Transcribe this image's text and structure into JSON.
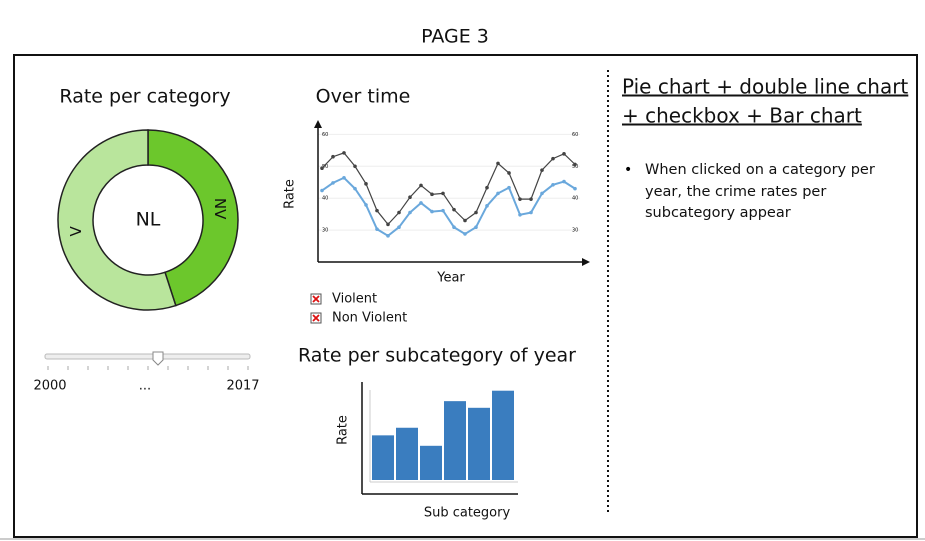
{
  "header": {
    "title": "PAGE 3"
  },
  "pie": {
    "title": "Rate per category",
    "center_label": "NL",
    "categories": [
      "NV",
      "V"
    ],
    "values": [
      45,
      55
    ],
    "colors": [
      "#6cc72c",
      "#b9e59c"
    ]
  },
  "slider": {
    "labels": [
      "2000",
      "...",
      "2017"
    ]
  },
  "line_chart": {
    "type": "line",
    "title": "Over time",
    "x_label": "Year",
    "y_label": "Rate",
    "ylim": [
      20,
      62
    ],
    "yticks": [
      30,
      40,
      50,
      60
    ],
    "grid": true,
    "series": [
      {
        "name": "Violent",
        "color": "#444444",
        "values": [
          49.4,
          53.0,
          54.2,
          50.0,
          44.5,
          36.1,
          31.8,
          35.5,
          40.3,
          44.0,
          41.2,
          41.5,
          36.4,
          33.0,
          35.5,
          43.3,
          50.9,
          47.9,
          39.7,
          39.7,
          48.8,
          52.4,
          53.9,
          50.6
        ]
      },
      {
        "name": "Non Violent",
        "color": "#6aa8dc",
        "values": [
          42.4,
          44.8,
          46.4,
          43.0,
          37.9,
          30.3,
          28.2,
          30.9,
          35.5,
          38.5,
          35.8,
          36.1,
          30.9,
          28.8,
          30.9,
          37.6,
          41.5,
          43.3,
          34.8,
          35.5,
          41.5,
          44.2,
          45.2,
          43.0
        ]
      }
    ]
  },
  "bar_chart": {
    "type": "bar",
    "title": "Rate per subcategory of year",
    "x_label": "Sub category",
    "y_label": "Rate",
    "ylim": [
      0,
      100
    ],
    "values": [
      47,
      55,
      36,
      83,
      76,
      94
    ],
    "color": "#3a7dbf"
  },
  "notes": {
    "heading_lines": [
      "Pie chart + double line chart",
      "+ checkbox + Bar chart"
    ],
    "bullet": "When clicked on a category per year, the crime rates per subcategory appear"
  }
}
